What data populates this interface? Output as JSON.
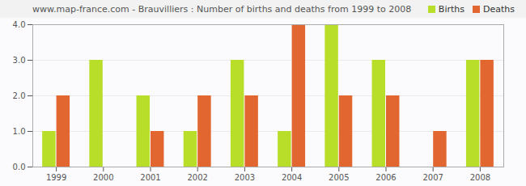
{
  "chart_data": {
    "type": "bar",
    "title": "www.map-france.com - Brauvilliers : Number of births and deaths from 1999 to 2008",
    "categories": [
      "1999",
      "2000",
      "2001",
      "2002",
      "2003",
      "2004",
      "2005",
      "2006",
      "2007",
      "2008"
    ],
    "series": [
      {
        "name": "Births",
        "color": "#b8de2a",
        "values": [
          1,
          3,
          2,
          1,
          3,
          1,
          4,
          3,
          0,
          3
        ]
      },
      {
        "name": "Deaths",
        "color": "#e2662f",
        "values": [
          2,
          0,
          1,
          2,
          2,
          4,
          2,
          2,
          1,
          3
        ]
      }
    ],
    "ylim": [
      0,
      4
    ],
    "yticks": [
      0,
      1,
      2,
      3,
      4
    ],
    "grid": true,
    "legend": "top-right"
  }
}
